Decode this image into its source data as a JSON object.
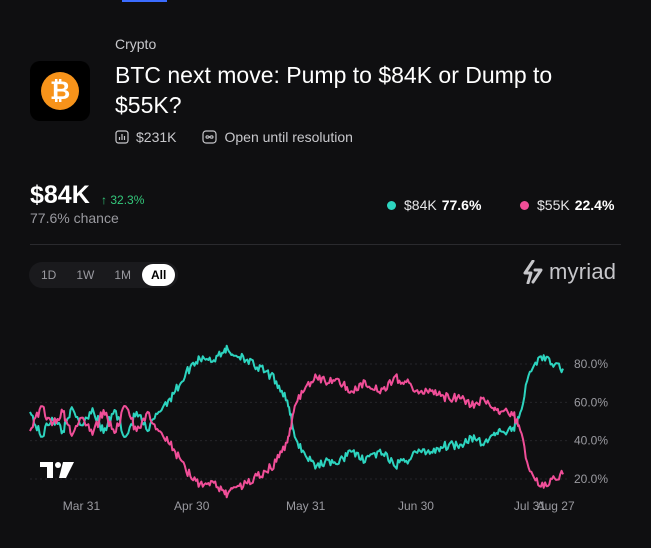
{
  "market": {
    "category": "Crypto",
    "title": "BTC next move: Pump to $84K or Dump to $55K?",
    "volume": "$231K",
    "status": "Open until resolution",
    "icon": "bitcoin-icon"
  },
  "summary": {
    "price": "$84K",
    "change": "32.3%",
    "chance": "77.6% chance"
  },
  "outcomes": [
    {
      "label": "$84K",
      "value": "77.6%",
      "color": "#2dd4bf"
    },
    {
      "label": "$55K",
      "value": "22.4%",
      "color": "#f04e98"
    }
  ],
  "range_tabs": [
    "1D",
    "1W",
    "1M",
    "All"
  ],
  "active_range": "All",
  "brand": {
    "name": "myriad",
    "watermark_icon": "tradingview-logo"
  },
  "chart_data": {
    "type": "line",
    "x_ticks": [
      "Mar 31",
      "Apr 30",
      "May 31",
      "Jun 30",
      "Jul 31",
      "Aug 27"
    ],
    "y_ticks": [
      "80.0%",
      "60.0%",
      "40.0%",
      "20.0%"
    ],
    "ylim": [
      0,
      100
    ],
    "series": [
      {
        "name": "$84K",
        "color": "#2dd4bf",
        "points": [
          [
            0,
            55
          ],
          [
            3,
            42
          ],
          [
            6,
            52
          ],
          [
            9,
            45
          ],
          [
            11,
            56
          ],
          [
            14,
            48
          ],
          [
            17,
            57
          ],
          [
            20,
            44
          ],
          [
            23,
            56
          ],
          [
            26,
            42
          ],
          [
            29,
            55
          ],
          [
            32,
            45
          ],
          [
            35,
            55
          ],
          [
            38,
            62
          ],
          [
            41,
            70
          ],
          [
            44,
            80
          ],
          [
            47,
            84
          ],
          [
            50,
            82
          ],
          [
            53,
            88
          ],
          [
            55,
            85
          ],
          [
            58,
            84
          ],
          [
            61,
            79
          ],
          [
            64,
            76
          ],
          [
            67,
            71
          ],
          [
            70,
            61
          ],
          [
            72,
            42
          ],
          [
            75,
            32
          ],
          [
            78,
            27
          ],
          [
            81,
            30
          ],
          [
            84,
            28
          ],
          [
            87,
            35
          ],
          [
            90,
            30
          ],
          [
            93,
            33
          ],
          [
            96,
            33
          ],
          [
            99,
            27
          ],
          [
            102,
            29
          ],
          [
            105,
            34
          ],
          [
            108,
            34
          ],
          [
            111,
            36
          ],
          [
            114,
            38
          ],
          [
            117,
            38
          ],
          [
            120,
            42
          ],
          [
            123,
            38
          ],
          [
            126,
            43
          ],
          [
            128,
            45
          ],
          [
            131,
            45
          ],
          [
            133,
            52
          ],
          [
            136,
            76
          ],
          [
            139,
            84
          ],
          [
            142,
            80
          ],
          [
            145,
            77.6
          ]
        ]
      },
      {
        "name": "$55K",
        "color": "#f04e98",
        "points": [
          [
            0,
            45
          ],
          [
            3,
            58
          ],
          [
            6,
            48
          ],
          [
            9,
            55
          ],
          [
            11,
            44
          ],
          [
            14,
            52
          ],
          [
            17,
            43
          ],
          [
            20,
            56
          ],
          [
            23,
            44
          ],
          [
            26,
            58
          ],
          [
            29,
            45
          ],
          [
            32,
            55
          ],
          [
            35,
            45
          ],
          [
            38,
            38
          ],
          [
            41,
            30
          ],
          [
            44,
            20
          ],
          [
            47,
            16
          ],
          [
            50,
            18
          ],
          [
            53,
            12
          ],
          [
            55,
            15
          ],
          [
            58,
            16
          ],
          [
            61,
            21
          ],
          [
            64,
            24
          ],
          [
            67,
            29
          ],
          [
            70,
            39
          ],
          [
            72,
            58
          ],
          [
            75,
            68
          ],
          [
            78,
            73
          ],
          [
            81,
            70
          ],
          [
            84,
            72
          ],
          [
            87,
            65
          ],
          [
            90,
            70
          ],
          [
            93,
            67
          ],
          [
            96,
            67
          ],
          [
            99,
            73
          ],
          [
            102,
            71
          ],
          [
            105,
            66
          ],
          [
            108,
            66
          ],
          [
            111,
            64
          ],
          [
            114,
            62
          ],
          [
            117,
            62
          ],
          [
            120,
            58
          ],
          [
            123,
            62
          ],
          [
            126,
            57
          ],
          [
            128,
            55
          ],
          [
            131,
            55
          ],
          [
            133,
            48
          ],
          [
            136,
            24
          ],
          [
            139,
            16
          ],
          [
            142,
            20
          ],
          [
            145,
            22.4
          ]
        ]
      }
    ]
  }
}
